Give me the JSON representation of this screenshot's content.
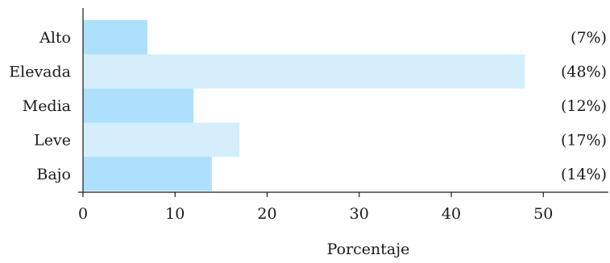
{
  "chart_data": {
    "type": "bar",
    "orientation": "horizontal",
    "categories": [
      "Alto",
      "Elevada",
      "Media",
      "Leve",
      "Bajo"
    ],
    "values": [
      7,
      48,
      12,
      17,
      14
    ],
    "value_labels": [
      "(7%)",
      "(48%)",
      "(12%)",
      "(17%)",
      "(14%)"
    ],
    "xlabel": "Porcentaje",
    "ylabel": "",
    "xlim": [
      0,
      55
    ],
    "xticks": [
      0,
      10,
      20,
      30,
      40,
      50
    ],
    "xtick_labels": [
      "0",
      "10",
      "20",
      "30",
      "40",
      "50"
    ],
    "grid": false,
    "bar_colors": [
      "#ADE1FB",
      "#D5EEFB"
    ]
  }
}
